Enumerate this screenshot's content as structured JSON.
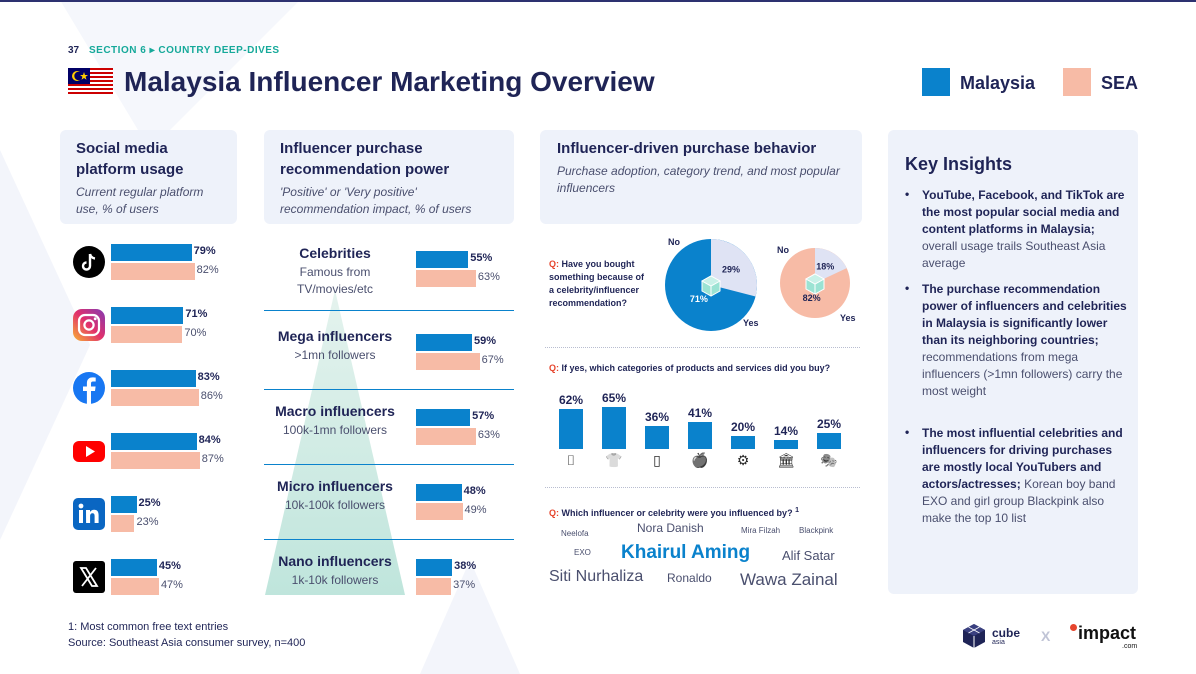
{
  "header": {
    "page_number": "37",
    "section": "SECTION 6 ▸ COUNTRY DEEP-DIVES",
    "title": "Malaysia Influencer Marketing Overview"
  },
  "legend": {
    "malaysia": "Malaysia",
    "sea": "SEA",
    "malaysia_color": "#0a82cc",
    "sea_color": "#f7bba6"
  },
  "social": {
    "title_line1": "Social media",
    "title_line2": "platform usage",
    "sub_line1": "Current regular platform",
    "sub_line2": "use, % of users",
    "platforms": [
      {
        "icon": "tiktok-icon",
        "malaysia": 79,
        "sea": 82,
        "malaysia_label": "79%",
        "sea_label": "82%"
      },
      {
        "icon": "instagram-icon",
        "malaysia": 71,
        "sea": 70,
        "malaysia_label": "71%",
        "sea_label": "70%"
      },
      {
        "icon": "facebook-icon",
        "malaysia": 83,
        "sea": 86,
        "malaysia_label": "83%",
        "sea_label": "86%"
      },
      {
        "icon": "youtube-icon",
        "malaysia": 84,
        "sea": 87,
        "malaysia_label": "84%",
        "sea_label": "87%"
      },
      {
        "icon": "linkedin-icon",
        "malaysia": 25,
        "sea": 23,
        "malaysia_label": "25%",
        "sea_label": "23%"
      },
      {
        "icon": "x-icon",
        "malaysia": 45,
        "sea": 47,
        "malaysia_label": "45%",
        "sea_label": "47%"
      }
    ]
  },
  "recommend": {
    "title_line1": "Influencer purchase",
    "title_line2": "recommendation power",
    "sub_line1": "'Positive' or 'Very positive'",
    "sub_line2": "recommendation impact, % of users",
    "tiers": [
      {
        "name": "Celebrities",
        "sub1": "Famous from",
        "sub2": "TV/movies/etc",
        "malaysia": 55,
        "sea": 63,
        "malaysia_label": "55%",
        "sea_label": "63%"
      },
      {
        "name": "Mega influencers",
        "sub1": ">1mn followers",
        "sub2": "",
        "malaysia": 59,
        "sea": 67,
        "malaysia_label": "59%",
        "sea_label": "67%"
      },
      {
        "name": "Macro influencers",
        "sub1": "100k-1mn followers",
        "sub2": "",
        "malaysia": 57,
        "sea": 63,
        "malaysia_label": "57%",
        "sea_label": "63%"
      },
      {
        "name": "Micro influencers",
        "sub1": "10k-100k followers",
        "sub2": "",
        "malaysia": 48,
        "sea": 49,
        "malaysia_label": "48%",
        "sea_label": "49%"
      },
      {
        "name": "Nano influencers",
        "sub1": "1k-10k followers",
        "sub2": "",
        "malaysia": 38,
        "sea": 37,
        "malaysia_label": "38%",
        "sea_label": "37%"
      }
    ]
  },
  "behavior": {
    "title": "Influencer-driven purchase behavior",
    "sub_line1": "Purchase adoption, category trend, and most popular",
    "sub_line2": "influencers",
    "q1_prefix": "Q:",
    "q1_line1": "Have you bought",
    "q1_line2": "something because of",
    "q1_line3": "a celebrity/influencer",
    "q1_line4": "recommendation?",
    "no_label": "No",
    "yes_label": "Yes",
    "pie_malaysia": {
      "yes": 71,
      "no": 29,
      "yes_label": "71%",
      "no_label": "29%"
    },
    "pie_sea": {
      "yes": 82,
      "no": 18,
      "yes_label": "82%",
      "no_label": "18%"
    },
    "q2_prefix": "Q:",
    "q2_text": "If yes, which categories of products and services did you buy?",
    "categories": [
      {
        "icon": "lipstick-icon",
        "value": 62,
        "label": "62%"
      },
      {
        "icon": "tshirt-icon",
        "value": 65,
        "label": "65%"
      },
      {
        "icon": "smartphone-icon",
        "value": 36,
        "label": "36%"
      },
      {
        "icon": "apple-icon",
        "value": 41,
        "label": "41%"
      },
      {
        "icon": "dumbbell-icon",
        "value": 20,
        "label": "20%"
      },
      {
        "icon": "bank-icon",
        "value": 14,
        "label": "14%"
      },
      {
        "icon": "theater-masks-icon",
        "value": 25,
        "label": "25%"
      }
    ],
    "q3_prefix": "Q:",
    "q3_text": "Which influencer or celebrity were you influenced by?",
    "q3_sup": "1",
    "word_cloud": [
      {
        "text": "Neelofa"
      },
      {
        "text": "Nora Danish"
      },
      {
        "text": "Mira Filzah"
      },
      {
        "text": "Blackpink"
      },
      {
        "text": "EXO"
      },
      {
        "text": "Khairul Aming"
      },
      {
        "text": "Alif Satar"
      },
      {
        "text": "Siti Nurhaliza"
      },
      {
        "text": "Ronaldo"
      },
      {
        "text": "Wawa Zainal"
      }
    ]
  },
  "insights": {
    "title": "Key Insights",
    "items": [
      {
        "bold": "YouTube, Facebook, and TikTok are the most popular social media and content platforms in Malaysia;",
        "rest": "overall usage trails Southeast Asia average"
      },
      {
        "bold": "The purchase recommendation power of influencers and celebrities in Malaysia is significantly lower than its neighboring countries;",
        "rest": "recommendations from mega influencers (>1mn followers) carry the most weight"
      },
      {
        "bold": "The most influential celebrities and influencers for driving purchases are mostly local YouTubers and actors/actresses;",
        "rest": "Korean boy band EXO and girl group Blackpink also make the top 10 list"
      }
    ]
  },
  "footer": {
    "note": "1: Most common free text entries",
    "source": "Source: Southeast Asia consumer survey, n=400",
    "brand1": "cube",
    "brand1_sub": "asia",
    "separator": "X",
    "brand2": "impact",
    "brand2_sub": ".com"
  }
}
